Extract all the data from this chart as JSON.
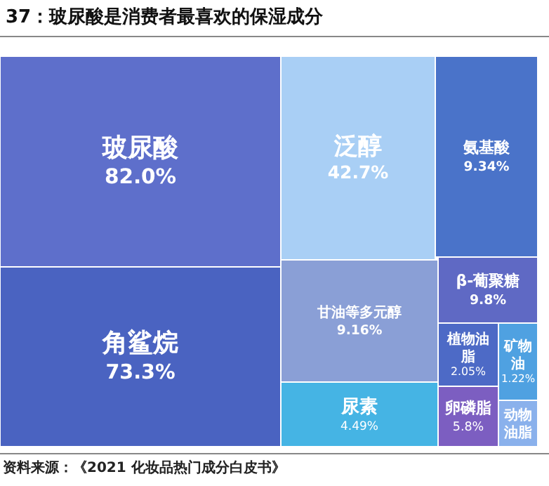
{
  "chart_data": {
    "type": "other",
    "title": "37：玻尿酸是消费者最喜欢的保湿成分",
    "categories": [
      "玻尿酸",
      "角鲨烷",
      "泛醇",
      "氨基酸",
      "甘油等多元醇",
      "尿素",
      "β-葡聚糖",
      "植物油脂",
      "矿物油",
      "卵磷脂",
      "动物油脂"
    ],
    "values": [
      82.0,
      73.3,
      42.7,
      9.34,
      9.16,
      4.49,
      9.8,
      2.05,
      1.22,
      5.8,
      null
    ],
    "value_labels": [
      "82.0%",
      "73.3%",
      "42.7%",
      "9.34%",
      "9.16%",
      "4.49%",
      "9.8%",
      "2.05%",
      "1.22%",
      "5.8%",
      null
    ],
    "colors": [
      "#5e6fcb",
      "#4a63c1",
      "#a9cff5",
      "#4a73c9",
      "#8a9fd6",
      "#45b4e4",
      "#5f69c4",
      "#4d6ac6",
      "#4fa1e1",
      "#7c5ec1",
      "#8ab1ec"
    ],
    "annotations": [
      "资料来源：《2021 化妆品热门成分白皮书》"
    ]
  }
}
